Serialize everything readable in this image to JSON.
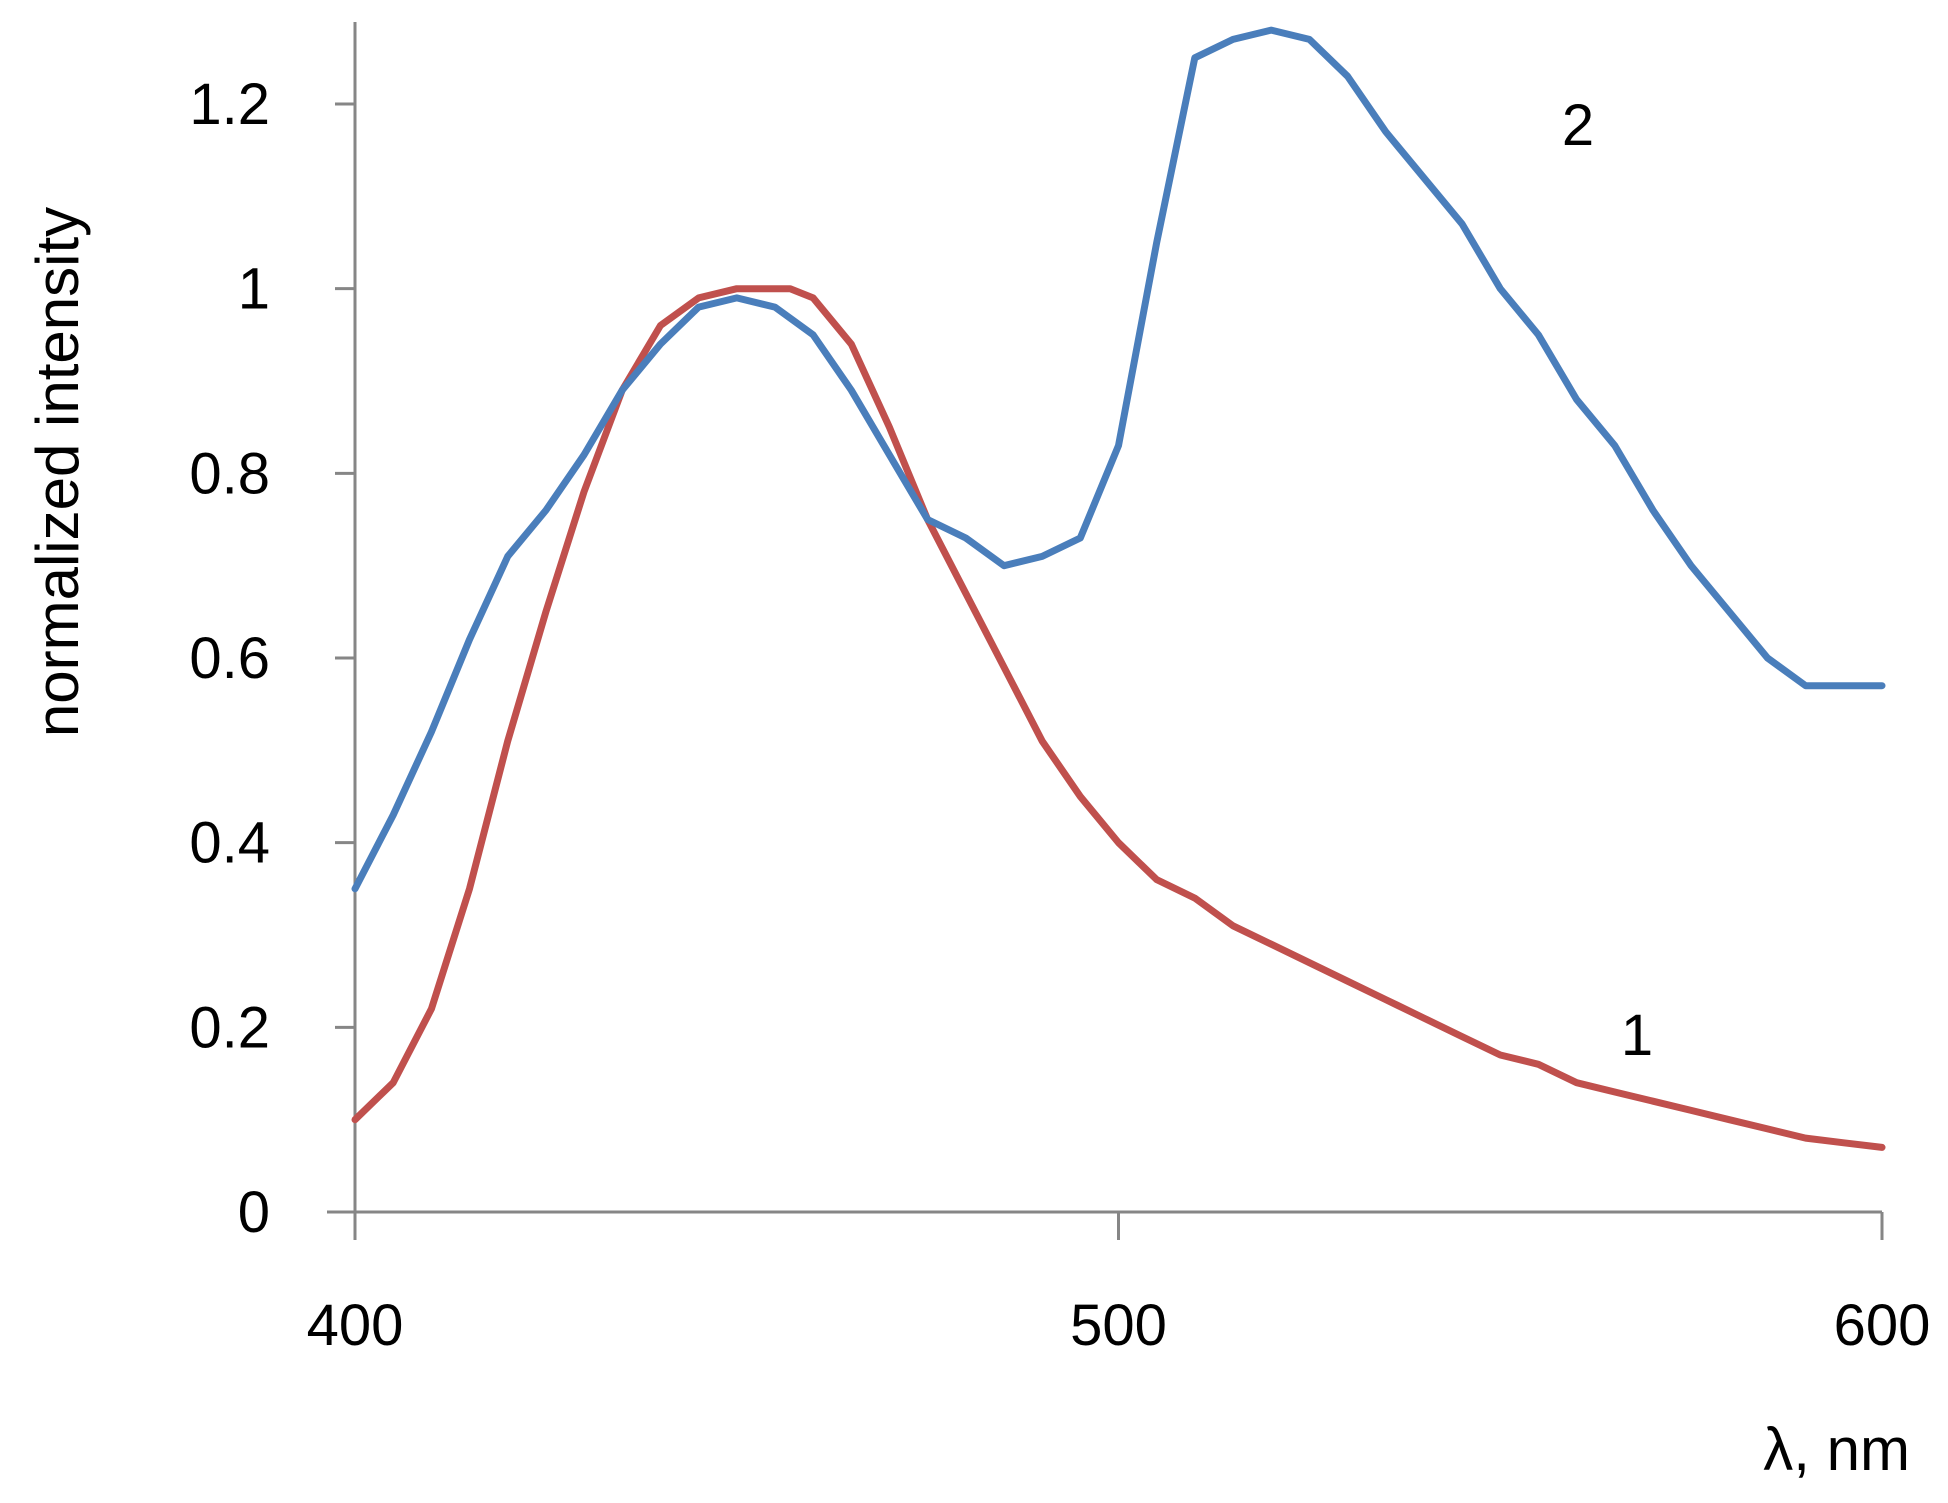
{
  "chart_data": {
    "type": "line",
    "xlabel": "λ, nm",
    "ylabel": "normalized intensity",
    "xlim": [
      400,
      600
    ],
    "ylim": [
      0,
      1.3
    ],
    "xticks": [
      400,
      500,
      600
    ],
    "yticks": [
      0,
      0.2,
      0.4,
      0.6,
      0.8,
      1,
      1.2
    ],
    "ytick_labels": [
      "0",
      "0.2",
      "0.4",
      "0.6",
      "0.8",
      "1",
      "1.2"
    ],
    "xtick_labels": [
      "400",
      "500",
      "600"
    ],
    "grid": false,
    "legend": "none",
    "series": [
      {
        "name": "1",
        "color": "#c0504d",
        "x": [
          400,
          405,
          410,
          415,
          420,
          425,
          430,
          435,
          440,
          445,
          450,
          455,
          457,
          460,
          465,
          470,
          475,
          480,
          485,
          490,
          495,
          500,
          505,
          510,
          515,
          520,
          525,
          530,
          535,
          540,
          545,
          550,
          555,
          560,
          565,
          570,
          575,
          580,
          585,
          590,
          595,
          600
        ],
        "y": [
          0.1,
          0.14,
          0.22,
          0.35,
          0.51,
          0.65,
          0.78,
          0.89,
          0.96,
          0.99,
          1.0,
          1.0,
          1.0,
          0.99,
          0.94,
          0.85,
          0.75,
          0.67,
          0.59,
          0.51,
          0.45,
          0.4,
          0.36,
          0.34,
          0.31,
          0.29,
          0.27,
          0.25,
          0.23,
          0.21,
          0.19,
          0.17,
          0.16,
          0.14,
          0.13,
          0.12,
          0.11,
          0.1,
          0.09,
          0.08,
          0.075,
          0.07
        ]
      },
      {
        "name": "2",
        "color": "#4a7ebb",
        "x": [
          400,
          405,
          410,
          415,
          420,
          425,
          430,
          435,
          440,
          445,
          450,
          455,
          460,
          465,
          470,
          475,
          480,
          485,
          490,
          495,
          500,
          505,
          510,
          515,
          520,
          525,
          530,
          535,
          540,
          545,
          550,
          555,
          560,
          565,
          570,
          575,
          580,
          585,
          590,
          595,
          600
        ],
        "y": [
          0.35,
          0.43,
          0.52,
          0.62,
          0.71,
          0.76,
          0.82,
          0.89,
          0.94,
          0.98,
          0.99,
          0.98,
          0.95,
          0.89,
          0.82,
          0.75,
          0.73,
          0.7,
          0.71,
          0.73,
          0.83,
          1.05,
          1.25,
          1.27,
          1.28,
          1.27,
          1.23,
          1.17,
          1.12,
          1.07,
          1.0,
          0.95,
          0.88,
          0.83,
          0.76,
          0.7,
          0.65,
          0.6,
          0.57,
          0.57,
          0.57
        ]
      }
    ]
  }
}
